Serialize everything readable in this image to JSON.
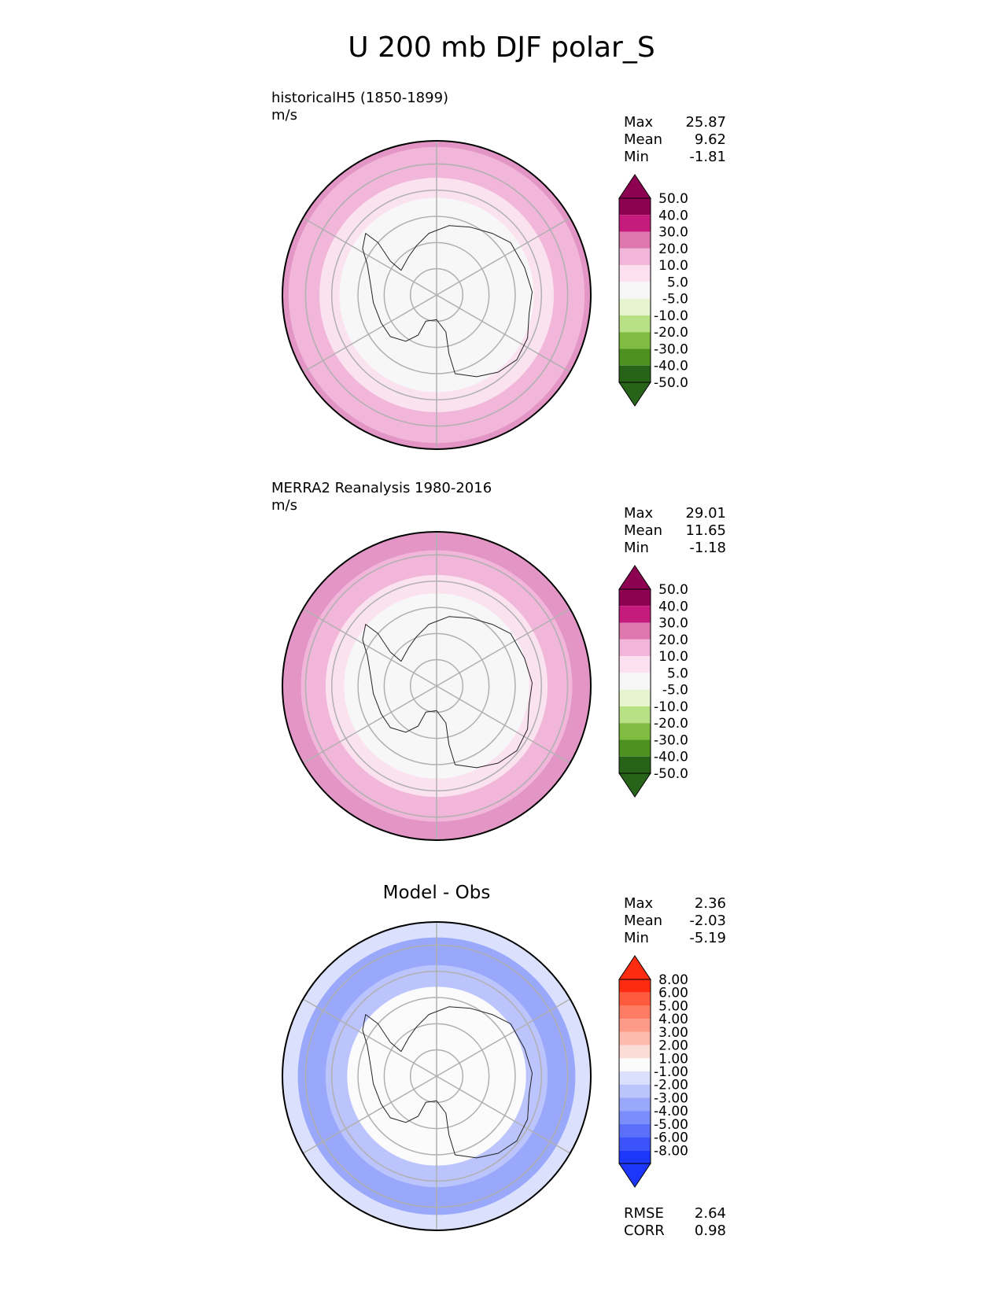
{
  "title": "U 200 mb DJF polar_S",
  "chart_data": [
    {
      "type": "polar_contour_map",
      "panel": "test",
      "label": "historicalH5 (1850-1899)",
      "units": "m/s",
      "stats": {
        "max_label": "Max",
        "max": "25.87",
        "mean_label": "Mean",
        "mean": "9.62",
        "min_label": "Min",
        "min": "-1.81"
      },
      "levels": [
        "50.0",
        "40.0",
        "30.0",
        "20.0",
        "10.0",
        "5.0",
        "-5.0",
        "-10.0",
        "-20.0",
        "-30.0",
        "-40.0",
        "-50.0"
      ],
      "colors": [
        "#8e0152",
        "#c51b7d",
        "#de77ae",
        "#f1b6da",
        "#fde0ef",
        "#f7f7f7",
        "#e6f5d0",
        "#b8e186",
        "#7fbc41",
        "#4d9221",
        "#276419"
      ],
      "arrow_colors": {
        "top": "#8e0152",
        "bottom": "#276419"
      },
      "rings": [
        {
          "r": 1.0,
          "fill": "#e396c6"
        },
        {
          "r": 0.96,
          "fill": "#f1b6da"
        },
        {
          "r": 0.76,
          "fill": "#fbe2ef"
        },
        {
          "r": 0.63,
          "fill": "#f7f7f7"
        }
      ]
    },
    {
      "type": "polar_contour_map",
      "panel": "reference",
      "label": "MERRA2 Reanalysis 1980-2016",
      "units": "m/s",
      "stats": {
        "max_label": "Max",
        "max": "29.01",
        "mean_label": "Mean",
        "mean": "11.65",
        "min_label": "Min",
        "min": "-1.18"
      },
      "levels": [
        "50.0",
        "40.0",
        "30.0",
        "20.0",
        "10.0",
        "5.0",
        "-5.0",
        "-10.0",
        "-20.0",
        "-30.0",
        "-40.0",
        "-50.0"
      ],
      "colors": [
        "#8e0152",
        "#c51b7d",
        "#de77ae",
        "#f1b6da",
        "#fde0ef",
        "#f7f7f7",
        "#e6f5d0",
        "#b8e186",
        "#7fbc41",
        "#4d9221",
        "#276419"
      ],
      "arrow_colors": {
        "top": "#8e0152",
        "bottom": "#276419"
      },
      "rings": [
        {
          "r": 1.0,
          "fill": "#e396c6"
        },
        {
          "r": 0.88,
          "fill": "#f1b6da"
        },
        {
          "r": 0.72,
          "fill": "#fbe2ef"
        },
        {
          "r": 0.6,
          "fill": "#f7f7f7"
        }
      ]
    },
    {
      "type": "polar_contour_map",
      "panel": "difference",
      "title": "Model - Obs",
      "stats": {
        "max_label": "Max",
        "max": "2.36",
        "mean_label": "Mean",
        "mean": "-2.03",
        "min_label": "Min",
        "min": "-5.19"
      },
      "levels": [
        "8.00",
        "6.00",
        "5.00",
        "4.00",
        "3.00",
        "2.00",
        "1.00",
        "-1.00",
        "-2.00",
        "-3.00",
        "-4.00",
        "-5.00",
        "-6.00",
        "-8.00"
      ],
      "colors": [
        "#fd2b10",
        "#fe5a3e",
        "#fe7c64",
        "#fe9a88",
        "#fdbbad",
        "#fcdcd6",
        "#fbfbfb",
        "#dbe0fc",
        "#bbc4fc",
        "#9aa8fb",
        "#7b8cfb",
        "#5b6ffb",
        "#3c53fb",
        "#1c37fb"
      ],
      "arrow_colors": {
        "top": "#fd2b10",
        "bottom": "#1c37fb"
      },
      "rings": [
        {
          "r": 1.0,
          "fill": "#dbe0fc"
        },
        {
          "r": 0.9,
          "fill": "#9aa8fb"
        },
        {
          "r": 0.72,
          "fill": "#bbc4fc"
        },
        {
          "r": 0.58,
          "fill": "#fbfbfb"
        }
      ],
      "rmse_label": "RMSE",
      "rmse": "2.64",
      "corr_label": "CORR",
      "corr": "0.98"
    }
  ]
}
